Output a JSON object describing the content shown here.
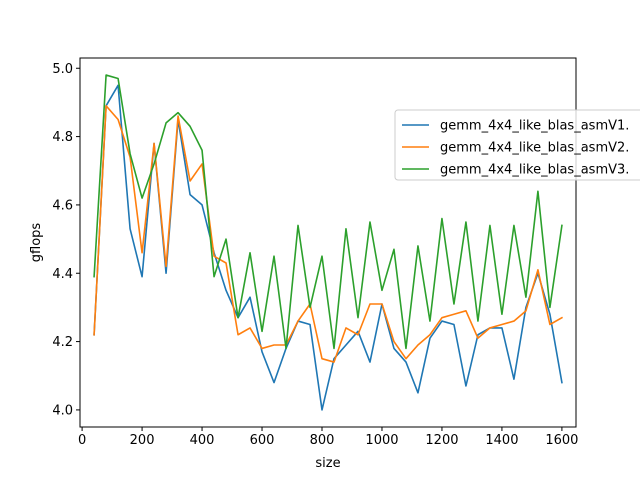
{
  "chart_data": {
    "type": "line",
    "title": "",
    "xlabel": "size",
    "ylabel": "gflops",
    "xlim": [
      -7,
      1647
    ],
    "ylim": [
      3.95,
      5.03
    ],
    "xticks": [
      0,
      200,
      400,
      600,
      800,
      1000,
      1200,
      1400,
      1600
    ],
    "yticks": [
      4.0,
      4.2,
      4.4,
      4.6,
      4.8,
      5.0
    ],
    "xtick_labels": [
      "0",
      "200",
      "400",
      "600",
      "800",
      "1000",
      "1200",
      "1400",
      "1600"
    ],
    "ytick_labels": [
      "4.0",
      "4.2",
      "4.4",
      "4.6",
      "4.8",
      "5.0"
    ],
    "grid": false,
    "legend_position": "upper right, partially clipped at right edge",
    "x": [
      40,
      80,
      120,
      160,
      200,
      240,
      280,
      320,
      360,
      400,
      440,
      480,
      520,
      560,
      600,
      640,
      680,
      720,
      760,
      800,
      840,
      880,
      920,
      960,
      1000,
      1040,
      1080,
      1120,
      1160,
      1200,
      1240,
      1280,
      1320,
      1360,
      1400,
      1440,
      1480,
      1520,
      1560,
      1600
    ],
    "series": [
      {
        "name": "gemm_4x4_like_blas_asmV1.",
        "color": "#1f77b4",
        "values": [
          4.22,
          4.89,
          4.95,
          4.53,
          4.39,
          4.78,
          4.4,
          4.85,
          4.63,
          4.6,
          4.46,
          4.35,
          4.27,
          4.33,
          4.17,
          4.08,
          4.18,
          4.26,
          4.25,
          4.0,
          4.15,
          4.19,
          4.23,
          4.14,
          4.31,
          4.18,
          4.14,
          4.05,
          4.21,
          4.26,
          4.25,
          4.07,
          4.22,
          4.24,
          4.24,
          4.09,
          4.3,
          4.4,
          4.28,
          4.08
        ]
      },
      {
        "name": "gemm_4x4_like_blas_asmV2.",
        "color": "#ff7f0e",
        "values": [
          4.22,
          4.89,
          4.85,
          4.74,
          4.46,
          4.78,
          4.42,
          4.86,
          4.67,
          4.72,
          4.45,
          4.43,
          4.22,
          4.24,
          4.18,
          4.19,
          4.19,
          4.26,
          4.31,
          4.15,
          4.14,
          4.24,
          4.22,
          4.31,
          4.31,
          4.2,
          4.15,
          4.19,
          4.22,
          4.27,
          4.28,
          4.29,
          4.21,
          4.24,
          4.25,
          4.26,
          4.29,
          4.41,
          4.25,
          4.27
        ]
      },
      {
        "name": "gemm_4x4_like_blas_asmV3.",
        "color": "#2ca02c",
        "values": [
          4.39,
          4.98,
          4.97,
          4.75,
          4.62,
          4.72,
          4.84,
          4.87,
          4.83,
          4.76,
          4.39,
          4.5,
          4.27,
          4.46,
          4.23,
          4.45,
          4.18,
          4.54,
          4.3,
          4.45,
          4.18,
          4.53,
          4.27,
          4.55,
          4.35,
          4.47,
          4.18,
          4.48,
          4.26,
          4.56,
          4.31,
          4.55,
          4.26,
          4.54,
          4.28,
          4.54,
          4.33,
          4.64,
          4.3,
          4.54
        ]
      }
    ]
  }
}
